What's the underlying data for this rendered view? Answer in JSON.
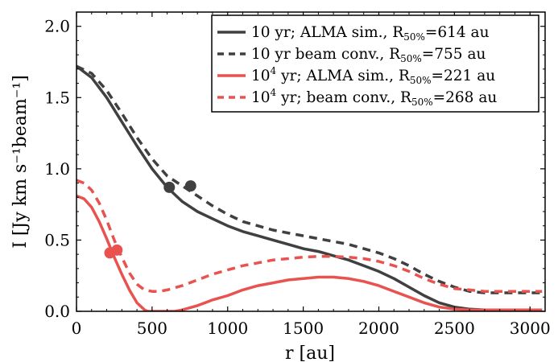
{
  "chart_data": {
    "type": "line",
    "xlabel": "r [au]",
    "ylabel": "I [Jy km s⁻¹beam⁻¹]",
    "xlim": [
      0,
      3100
    ],
    "ylim": [
      0,
      2.1
    ],
    "xticks": [
      "0",
      "500",
      "1000",
      "1500",
      "2000",
      "2500",
      "3000"
    ],
    "yticks": [
      "0.0",
      "0.5",
      "1.0",
      "1.5",
      "2.0"
    ],
    "grid": false,
    "legend_position": "top-right",
    "series": [
      {
        "name": "10 yr; ALMA sim., R50%=614 au",
        "legend_parts": {
          "main": "10 yr; ALMA sim., R",
          "sub": "50%",
          "tail": "=614 au"
        },
        "color": "#404040",
        "style": "solid",
        "x": [
          0,
          100,
          200,
          300,
          400,
          500,
          600,
          700,
          800,
          900,
          1000,
          1100,
          1200,
          1300,
          1400,
          1500,
          1600,
          1700,
          1800,
          1900,
          2000,
          2100,
          2200,
          2300,
          2400,
          2500,
          2600,
          2700,
          2800,
          2900,
          3000,
          3080
        ],
        "y": [
          1.72,
          1.64,
          1.5,
          1.33,
          1.16,
          1.0,
          0.87,
          0.77,
          0.7,
          0.65,
          0.6,
          0.56,
          0.53,
          0.5,
          0.47,
          0.44,
          0.42,
          0.39,
          0.36,
          0.32,
          0.28,
          0.23,
          0.17,
          0.11,
          0.06,
          0.03,
          0.015,
          0.01,
          0.01,
          0.01,
          0.01,
          0.01
        ],
        "marker": {
          "x": 614,
          "y": 0.87
        }
      },
      {
        "name": "10 yr beam conv., R50%=755 au",
        "legend_parts": {
          "main": "10 yr beam conv., R",
          "sub": "50%",
          "tail": "=755 au"
        },
        "color": "#404040",
        "style": "dashed",
        "x": [
          0,
          100,
          200,
          300,
          400,
          500,
          600,
          700,
          800,
          900,
          1000,
          1100,
          1200,
          1300,
          1400,
          1500,
          1600,
          1700,
          1800,
          1900,
          2000,
          2100,
          2200,
          2300,
          2400,
          2500,
          2600,
          2700,
          2800,
          2900,
          3000,
          3080
        ],
        "y": [
          1.72,
          1.67,
          1.55,
          1.39,
          1.22,
          1.07,
          0.95,
          0.88,
          0.81,
          0.74,
          0.68,
          0.63,
          0.6,
          0.57,
          0.55,
          0.53,
          0.51,
          0.49,
          0.47,
          0.44,
          0.41,
          0.37,
          0.32,
          0.26,
          0.21,
          0.17,
          0.14,
          0.13,
          0.13,
          0.13,
          0.13,
          0.13
        ],
        "marker": {
          "x": 755,
          "y": 0.88
        }
      },
      {
        "name": "10^4 yr; ALMA sim., R50%=221 au",
        "legend_parts": {
          "main": "10",
          "sup": "4",
          "rest": " yr; ALMA sim., R",
          "sub": "50%",
          "tail": "=221 au"
        },
        "color": "#e8524f",
        "style": "solid",
        "x": [
          0,
          50,
          100,
          150,
          200,
          250,
          300,
          350,
          400,
          450,
          470,
          650,
          700,
          800,
          900,
          1000,
          1100,
          1200,
          1300,
          1400,
          1500,
          1600,
          1700,
          1800,
          1900,
          2000,
          2100,
          2200,
          2300,
          2400,
          2500,
          2600,
          2700,
          2800,
          2900,
          3000,
          3080
        ],
        "y": [
          0.81,
          0.79,
          0.73,
          0.63,
          0.51,
          0.38,
          0.26,
          0.15,
          0.06,
          0.01,
          0.0,
          0.0,
          0.01,
          0.04,
          0.08,
          0.11,
          0.15,
          0.18,
          0.2,
          0.22,
          0.23,
          0.24,
          0.24,
          0.23,
          0.21,
          0.18,
          0.14,
          0.1,
          0.06,
          0.03,
          0.015,
          0.01,
          0.01,
          0.01,
          0.01,
          0.01,
          0.01
        ],
        "marker": {
          "x": 221,
          "y": 0.41
        }
      },
      {
        "name": "10^4 yr; beam conv., R50%=268 au",
        "legend_parts": {
          "main": "10",
          "sup": "4",
          "rest": " yr; beam conv., R",
          "sub": "50%",
          "tail": "=268 au"
        },
        "color": "#e8524f",
        "style": "dashed",
        "x": [
          0,
          50,
          100,
          150,
          200,
          250,
          300,
          350,
          400,
          450,
          500,
          550,
          600,
          700,
          800,
          900,
          1000,
          1100,
          1200,
          1300,
          1400,
          1500,
          1600,
          1700,
          1800,
          1900,
          2000,
          2100,
          2200,
          2300,
          2400,
          2500,
          2600,
          2700,
          2800,
          2900,
          3000,
          3080
        ],
        "y": [
          0.92,
          0.9,
          0.85,
          0.76,
          0.64,
          0.5,
          0.38,
          0.27,
          0.19,
          0.15,
          0.14,
          0.14,
          0.15,
          0.18,
          0.22,
          0.26,
          0.29,
          0.32,
          0.34,
          0.36,
          0.37,
          0.38,
          0.385,
          0.385,
          0.38,
          0.37,
          0.35,
          0.32,
          0.28,
          0.23,
          0.19,
          0.16,
          0.15,
          0.14,
          0.14,
          0.14,
          0.14,
          0.14
        ],
        "marker": {
          "x": 268,
          "y": 0.43
        }
      }
    ]
  }
}
